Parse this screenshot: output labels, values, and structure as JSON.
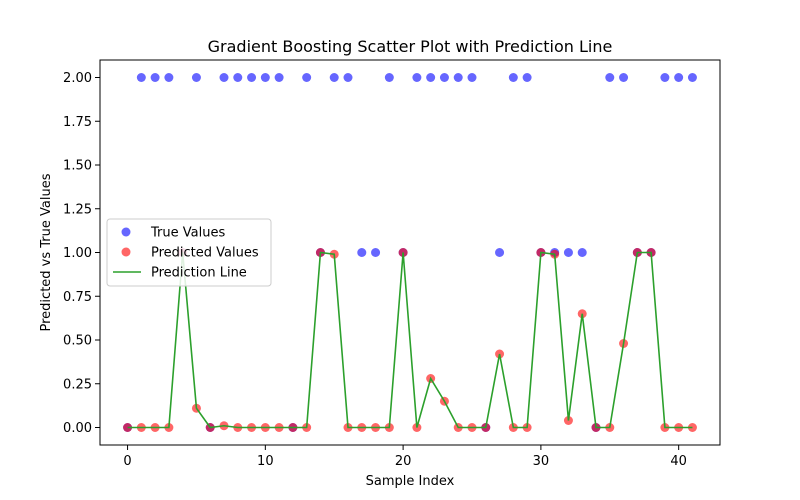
{
  "chart_data": {
    "type": "scatter",
    "title": "Gradient Boosting Scatter Plot with Prediction Line",
    "xlabel": "Sample Index",
    "ylabel": "Predicted vs True Values",
    "xlim": [
      -2,
      43
    ],
    "ylim": [
      -0.1,
      2.1
    ],
    "xticks": [
      0,
      10,
      20,
      30,
      40
    ],
    "xtick_labels": [
      "0",
      "10",
      "20",
      "30",
      "40"
    ],
    "yticks": [
      0,
      0.25,
      0.5,
      0.75,
      1.0,
      1.25,
      1.5,
      1.75,
      2.0
    ],
    "ytick_labels": [
      "0.00",
      "0.25",
      "0.50",
      "0.75",
      "1.00",
      "1.25",
      "1.50",
      "1.75",
      "2.00"
    ],
    "grid": false,
    "legend_position": "center-left",
    "x": [
      0,
      1,
      2,
      3,
      4,
      5,
      6,
      7,
      8,
      9,
      10,
      11,
      12,
      13,
      14,
      15,
      16,
      17,
      18,
      19,
      20,
      21,
      22,
      23,
      24,
      25,
      26,
      27,
      28,
      29,
      30,
      31,
      32,
      33,
      34,
      35,
      36,
      37,
      38,
      39,
      40,
      41
    ],
    "series": [
      {
        "name": "True Values",
        "kind": "scatter",
        "color": "#0000ff",
        "values": [
          0,
          2,
          2,
          2,
          1,
          2,
          0,
          2,
          2,
          2,
          2,
          2,
          0,
          2,
          1,
          2,
          2,
          1,
          1,
          2,
          1,
          2,
          2,
          2,
          2,
          2,
          0,
          1,
          2,
          2,
          1,
          1,
          1,
          1,
          0,
          2,
          2,
          1,
          1,
          2,
          2,
          2
        ]
      },
      {
        "name": "Predicted Values",
        "kind": "scatter",
        "color": "#ff0000",
        "values": [
          0.0,
          0.0,
          0.0,
          0.0,
          1.0,
          0.11,
          0.0,
          0.01,
          0.0,
          0.0,
          0.0,
          0.0,
          0.0,
          0.0,
          1.0,
          0.99,
          0.0,
          0.0,
          0.0,
          0.0,
          1.0,
          0.0,
          0.28,
          0.15,
          0.0,
          0.0,
          0.0,
          0.42,
          0.0,
          0.0,
          1.0,
          0.99,
          0.04,
          0.65,
          0.0,
          0.0,
          0.48,
          1.0,
          1.0,
          0.0,
          0.0,
          0.0
        ]
      },
      {
        "name": "Prediction Line",
        "kind": "line",
        "color": "#2ca02c",
        "values": [
          0.0,
          0.0,
          0.0,
          0.0,
          1.0,
          0.11,
          0.0,
          0.01,
          0.0,
          0.0,
          0.0,
          0.0,
          0.0,
          0.0,
          1.0,
          0.99,
          0.0,
          0.0,
          0.0,
          0.0,
          1.0,
          0.0,
          0.28,
          0.15,
          0.0,
          0.0,
          0.0,
          0.42,
          0.0,
          0.0,
          1.0,
          0.99,
          0.04,
          0.65,
          0.0,
          0.0,
          0.48,
          1.0,
          1.0,
          0.0,
          0.0,
          0.0
        ]
      }
    ]
  }
}
